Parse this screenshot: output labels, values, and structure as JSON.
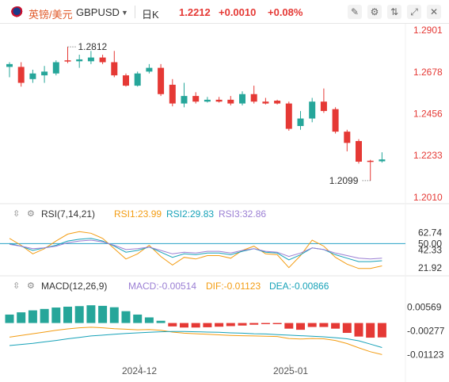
{
  "header": {
    "symbol_name": "英镑/美元",
    "symbol_code": "GBPUSD",
    "period": "日K",
    "price": "1.2212",
    "change": "+0.0010",
    "change_pct": "+0.08%",
    "icons": [
      "pen-icon",
      "settings-icon",
      "compare-icon",
      "fullscreen-icon",
      "close-icon"
    ]
  },
  "rsi": {
    "title": "RSI(7,14,21)",
    "rsi1": "RSI1:23.99",
    "rsi2": "RSI2:29.83",
    "rsi3": "RSI3:32.86"
  },
  "macd": {
    "title": "MACD(12,26,9)",
    "macd": "MACD:-0.00514",
    "dif": "DIF:-0.01123",
    "dea": "DEA:-0.00866"
  },
  "chart_data": [
    {
      "type": "candlestick",
      "name": "GBPUSD 日K",
      "y_axis_ticks": [
        "1.2901",
        "1.2678",
        "1.2456",
        "1.2233",
        "1.2010"
      ],
      "ylim": [
        1.201,
        1.2901
      ],
      "annotations": {
        "high": "1.2812",
        "low": "1.2099"
      },
      "x_labels": [
        "2024-12",
        "2025-01"
      ],
      "colors": {
        "up": "#26a69a",
        "down": "#e53935"
      },
      "candles": [
        {
          "o": 1.2705,
          "h": 1.273,
          "l": 1.265,
          "c": 1.272
        },
        {
          "o": 1.2705,
          "h": 1.273,
          "l": 1.26,
          "c": 1.262
        },
        {
          "o": 1.264,
          "h": 1.269,
          "l": 1.262,
          "c": 1.267
        },
        {
          "o": 1.266,
          "h": 1.271,
          "l": 1.262,
          "c": 1.268
        },
        {
          "o": 1.267,
          "h": 1.274,
          "l": 1.266,
          "c": 1.273
        },
        {
          "o": 1.274,
          "h": 1.2812,
          "l": 1.2725,
          "c": 1.2735
        },
        {
          "o": 1.2735,
          "h": 1.277,
          "l": 1.27,
          "c": 1.2745
        },
        {
          "o": 1.2735,
          "h": 1.279,
          "l": 1.272,
          "c": 1.2755
        },
        {
          "o": 1.2755,
          "h": 1.277,
          "l": 1.272,
          "c": 1.273
        },
        {
          "o": 1.273,
          "h": 1.279,
          "l": 1.265,
          "c": 1.266
        },
        {
          "o": 1.266,
          "h": 1.267,
          "l": 1.26,
          "c": 1.2605
        },
        {
          "o": 1.2605,
          "h": 1.268,
          "l": 1.26,
          "c": 1.267
        },
        {
          "o": 1.268,
          "h": 1.272,
          "l": 1.267,
          "c": 1.27
        },
        {
          "o": 1.27,
          "h": 1.272,
          "l": 1.255,
          "c": 1.256
        },
        {
          "o": 1.261,
          "h": 1.264,
          "l": 1.2495,
          "c": 1.251
        },
        {
          "o": 1.251,
          "h": 1.262,
          "l": 1.249,
          "c": 1.255
        },
        {
          "o": 1.255,
          "h": 1.257,
          "l": 1.251,
          "c": 1.252
        },
        {
          "o": 1.252,
          "h": 1.2545,
          "l": 1.2515,
          "c": 1.253
        },
        {
          "o": 1.253,
          "h": 1.2545,
          "l": 1.2515,
          "c": 1.252
        },
        {
          "o": 1.253,
          "h": 1.255,
          "l": 1.25,
          "c": 1.251
        },
        {
          "o": 1.251,
          "h": 1.2575,
          "l": 1.25,
          "c": 1.256
        },
        {
          "o": 1.256,
          "h": 1.2605,
          "l": 1.251,
          "c": 1.252
        },
        {
          "o": 1.252,
          "h": 1.254,
          "l": 1.2505,
          "c": 1.251
        },
        {
          "o": 1.2525,
          "h": 1.253,
          "l": 1.2505,
          "c": 1.251
        },
        {
          "o": 1.251,
          "h": 1.252,
          "l": 1.2365,
          "c": 1.2375
        },
        {
          "o": 1.239,
          "h": 1.247,
          "l": 1.237,
          "c": 1.243
        },
        {
          "o": 1.243,
          "h": 1.254,
          "l": 1.241,
          "c": 1.252
        },
        {
          "o": 1.252,
          "h": 1.259,
          "l": 1.246,
          "c": 1.247
        },
        {
          "o": 1.248,
          "h": 1.249,
          "l": 1.235,
          "c": 1.236
        },
        {
          "o": 1.236,
          "h": 1.237,
          "l": 1.2255,
          "c": 1.23
        },
        {
          "o": 1.231,
          "h": 1.232,
          "l": 1.219,
          "c": 1.22
        },
        {
          "o": 1.2205,
          "h": 1.221,
          "l": 1.2099,
          "c": 1.22
        },
        {
          "o": 1.2202,
          "h": 1.225,
          "l": 1.2195,
          "c": 1.2212
        }
      ]
    },
    {
      "type": "line",
      "name": "RSI(7,14,21)",
      "y_axis_ticks": [
        "62.74",
        "50.00",
        "42.33",
        "21.92"
      ],
      "ylim": [
        18,
        66
      ],
      "reference_line": 50,
      "series": [
        {
          "name": "RSI1",
          "color": "#f39c12",
          "values": [
            56,
            48,
            38,
            44,
            53,
            61,
            64,
            62,
            56,
            44,
            32,
            38,
            48,
            35,
            25,
            34,
            32,
            36,
            36,
            33,
            42,
            47,
            38,
            37,
            22,
            36,
            54,
            47,
            34,
            26,
            21,
            21,
            24
          ]
        },
        {
          "name": "RSI2",
          "color": "#17a2b8",
          "values": [
            50,
            47,
            42,
            45,
            48,
            53,
            55,
            56,
            53,
            47,
            40,
            42,
            46,
            40,
            34,
            38,
            37,
            39,
            39,
            37,
            41,
            44,
            40,
            39,
            31,
            37,
            45,
            43,
            37,
            33,
            29,
            29,
            30
          ]
        },
        {
          "name": "RSI3",
          "color": "#9b7fd4",
          "values": [
            49,
            47,
            44,
            45,
            47,
            51,
            53,
            54,
            52,
            48,
            43,
            44,
            46,
            42,
            38,
            40,
            39,
            41,
            41,
            39,
            42,
            44,
            41,
            40,
            35,
            39,
            45,
            43,
            39,
            36,
            33,
            32,
            33
          ]
        }
      ]
    },
    {
      "type": "bar+line",
      "name": "MACD(12,26,9)",
      "y_axis_ticks": [
        "0.00569",
        "-0.00277",
        "-0.01123"
      ],
      "ylim": [
        -0.0125,
        0.0072
      ],
      "colors": {
        "positive": "#26a69a",
        "negative": "#e53935",
        "dif": "#f39c12",
        "dea": "#17a2b8"
      },
      "histogram": [
        0.003,
        0.0038,
        0.0045,
        0.005,
        0.0055,
        0.0058,
        0.006,
        0.0063,
        0.0061,
        0.0056,
        0.0042,
        0.003,
        0.002,
        0.0008,
        -0.0012,
        -0.0016,
        -0.0016,
        -0.0015,
        -0.0013,
        -0.0011,
        -0.0009,
        -0.0006,
        -0.0004,
        -0.0004,
        -0.002,
        -0.0024,
        -0.0014,
        -0.0014,
        -0.002,
        -0.0035,
        -0.0048,
        -0.0052,
        -0.0051
      ],
      "dif": [
        -0.005,
        -0.0044,
        -0.0038,
        -0.0032,
        -0.0026,
        -0.0021,
        -0.0017,
        -0.0015,
        -0.0017,
        -0.002,
        -0.0022,
        -0.0024,
        -0.0023,
        -0.0026,
        -0.0032,
        -0.0036,
        -0.0038,
        -0.004,
        -0.0042,
        -0.0044,
        -0.0045,
        -0.0046,
        -0.0047,
        -0.0048,
        -0.0055,
        -0.0057,
        -0.0055,
        -0.0056,
        -0.0062,
        -0.0073,
        -0.0088,
        -0.0102,
        -0.0112
      ],
      "dea": [
        -0.008,
        -0.0076,
        -0.0072,
        -0.0067,
        -0.0062,
        -0.0056,
        -0.0051,
        -0.0046,
        -0.0043,
        -0.004,
        -0.0037,
        -0.0035,
        -0.0033,
        -0.0031,
        -0.003,
        -0.003,
        -0.0031,
        -0.0032,
        -0.0033,
        -0.0035,
        -0.0036,
        -0.0038,
        -0.0039,
        -0.0041,
        -0.0043,
        -0.0045,
        -0.0047,
        -0.0049,
        -0.0052,
        -0.0056,
        -0.0063,
        -0.0075,
        -0.0087
      ]
    }
  ]
}
